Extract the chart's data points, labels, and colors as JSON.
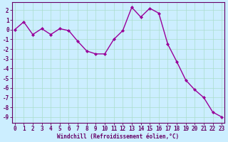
{
  "x": [
    0,
    1,
    2,
    3,
    4,
    5,
    6,
    7,
    8,
    9,
    10,
    11,
    12,
    13,
    14,
    15,
    16,
    17,
    18,
    19,
    20,
    21,
    22,
    23
  ],
  "y": [
    0.0,
    0.8,
    -0.5,
    0.1,
    -0.5,
    0.1,
    -0.1,
    -1.2,
    -2.2,
    -2.5,
    -2.5,
    -1.0,
    -0.1,
    2.3,
    1.3,
    2.2,
    1.7,
    -1.5,
    -3.3,
    -5.2,
    -6.2,
    -7.0,
    -8.5,
    -9.0
  ],
  "line_color": "#990099",
  "marker": "D",
  "markersize": 2.0,
  "linewidth": 1.0,
  "bg_color": "#cceeff",
  "grid_color": "#aaddcc",
  "xlabel": "Windchill (Refroidissement éolien,°C)",
  "xlabel_fontsize": 5.5,
  "xtick_labels": [
    "0",
    "1",
    "2",
    "3",
    "4",
    "5",
    "6",
    "7",
    "8",
    "9",
    "10",
    "11",
    "12",
    "13",
    "14",
    "15",
    "16",
    "17",
    "18",
    "19",
    "20",
    "21",
    "22",
    "23"
  ],
  "ytick_min": -9,
  "ytick_max": 2,
  "ytick_step": 1,
  "ylim": [
    -9.6,
    2.8
  ],
  "xlim": [
    -0.3,
    23.3
  ],
  "tick_fontsize": 5.5,
  "spine_color": "#660066",
  "label_color": "#660066"
}
